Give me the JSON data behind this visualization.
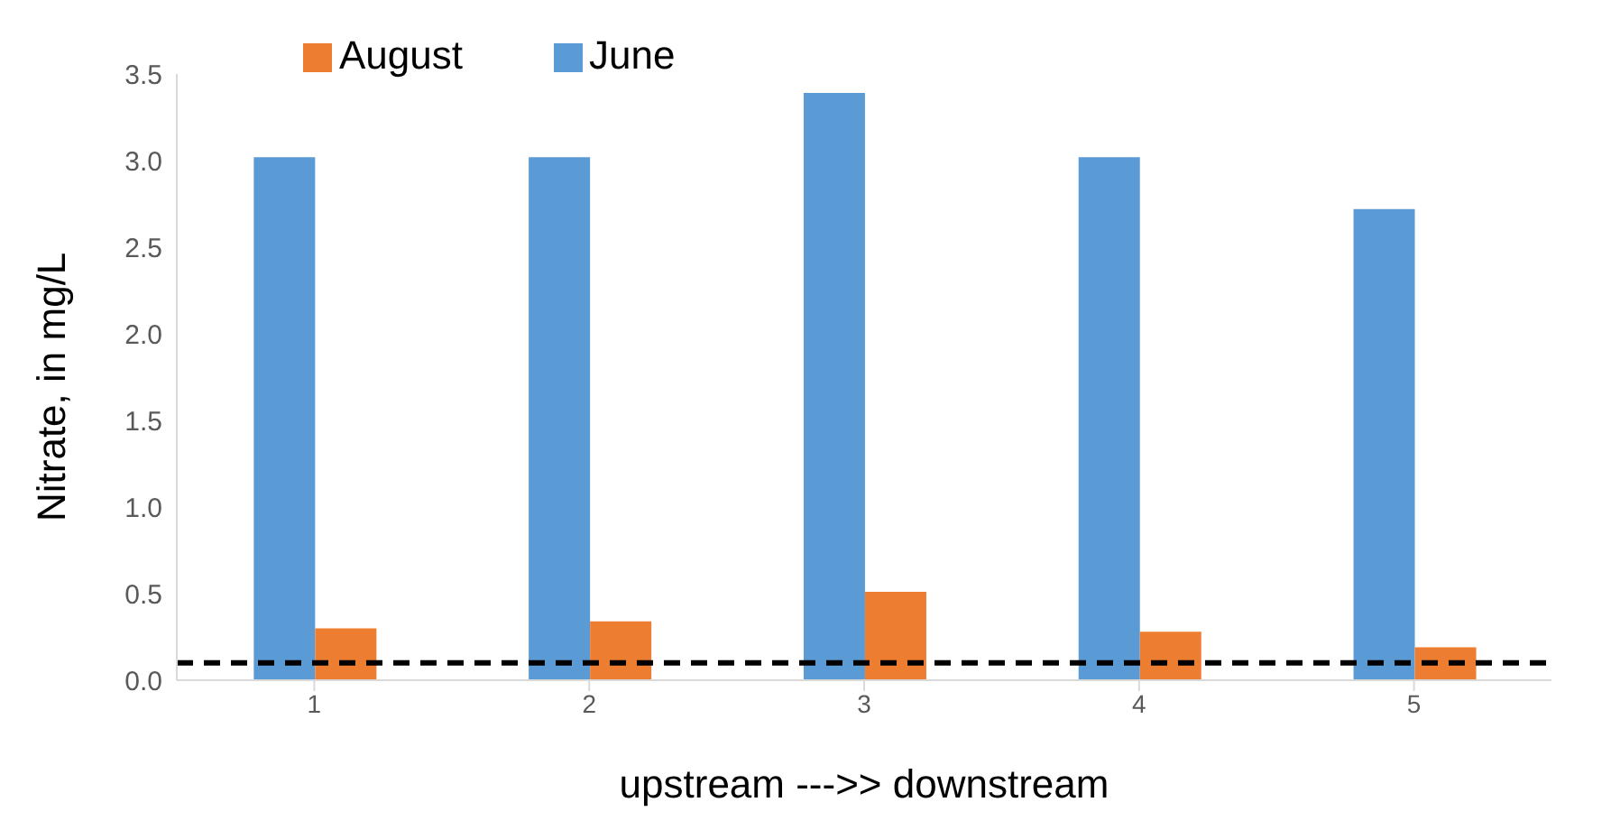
{
  "chart_data": {
    "type": "bar",
    "xlabel": "upstream --->> downstream",
    "ylabel": "Nitrate, in mg/L",
    "categories": [
      "1",
      "2",
      "3",
      "4",
      "5"
    ],
    "series": [
      {
        "name": "June",
        "color": "#5b9bd5",
        "values": [
          3.02,
          3.02,
          3.39,
          3.02,
          2.72
        ]
      },
      {
        "name": "August",
        "color": "#ed7d31",
        "values": [
          0.3,
          0.34,
          0.51,
          0.28,
          0.19
        ]
      }
    ],
    "ylim": [
      0,
      3.5
    ],
    "yticks": [
      {
        "value": 0,
        "label": "0.0"
      },
      {
        "value": 0.5,
        "label": "0.5"
      },
      {
        "value": 1,
        "label": "1.0"
      },
      {
        "value": 1.5,
        "label": "1.5"
      },
      {
        "value": 2,
        "label": "2.0"
      },
      {
        "value": 2.5,
        "label": "2.5"
      },
      {
        "value": 3,
        "label": "3.0"
      },
      {
        "value": 3.5,
        "label": "3.5"
      }
    ],
    "grid": false,
    "legend": "top left",
    "ref_lines": [
      {
        "axis": "y",
        "value": 0.1,
        "color": "#000000",
        "line_style": "dashed"
      }
    ]
  }
}
